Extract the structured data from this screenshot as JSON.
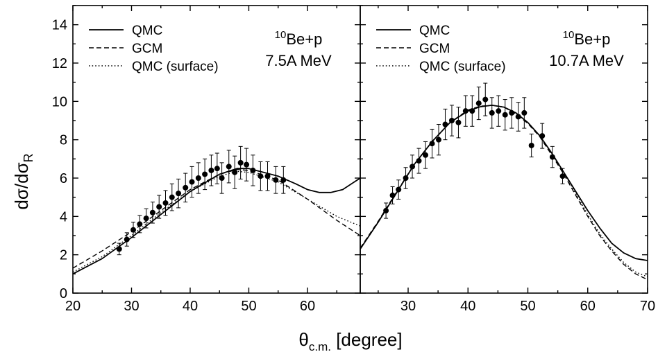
{
  "ylabel": {
    "main": "dσ/dσ",
    "sub": "R"
  },
  "xlabel": {
    "main": "θ",
    "sub": "c.m.",
    "rest": " [degree]"
  },
  "legend_labels": [
    "QMC",
    "GCM",
    "QMC (surface)"
  ],
  "chart_data": [
    {
      "type": "line",
      "panel": "left",
      "reaction": {
        "sup": "10",
        "text": "Be+p"
      },
      "energy": "7.5A MeV",
      "xlim": [
        20,
        69
      ],
      "ylim": [
        0,
        15
      ],
      "xticks": [
        20,
        30,
        40,
        50,
        60
      ],
      "yticks": [
        0,
        2,
        4,
        6,
        8,
        10,
        12,
        14
      ],
      "legend_position": "top-left",
      "series": [
        {
          "name": "QMC",
          "style": "solid",
          "x": [
            20,
            25,
            30,
            35,
            40,
            45,
            48,
            50,
            55,
            58,
            60,
            62,
            64,
            66,
            68,
            69
          ],
          "y": [
            1.0,
            1.8,
            2.9,
            4.1,
            5.3,
            6.2,
            6.5,
            6.5,
            6.1,
            5.7,
            5.4,
            5.25,
            5.25,
            5.4,
            5.8,
            6.0
          ]
        },
        {
          "name": "GCM",
          "style": "dashed",
          "x": [
            20,
            25,
            30,
            35,
            40,
            45,
            48,
            50,
            55,
            60,
            65,
            69
          ],
          "y": [
            1.3,
            2.2,
            3.2,
            4.3,
            5.4,
            6.2,
            6.45,
            6.4,
            5.9,
            4.9,
            3.8,
            3.0
          ]
        },
        {
          "name": "QMC (surface)",
          "style": "dotted",
          "x": [
            20,
            25,
            30,
            35,
            40,
            45,
            48,
            50,
            55,
            60,
            65,
            69
          ],
          "y": [
            1.1,
            1.9,
            3.0,
            4.2,
            5.3,
            6.1,
            6.35,
            6.3,
            5.8,
            4.9,
            4.0,
            3.5
          ]
        }
      ],
      "data_points": [
        {
          "x": 27.9,
          "y": 2.3,
          "err": 0.3
        },
        {
          "x": 29.2,
          "y": 2.8,
          "err": 0.35
        },
        {
          "x": 30.3,
          "y": 3.3,
          "err": 0.4
        },
        {
          "x": 31.4,
          "y": 3.6,
          "err": 0.45
        },
        {
          "x": 32.5,
          "y": 3.9,
          "err": 0.5
        },
        {
          "x": 33.6,
          "y": 4.2,
          "err": 0.55
        },
        {
          "x": 34.7,
          "y": 4.5,
          "err": 0.6
        },
        {
          "x": 35.8,
          "y": 4.7,
          "err": 0.65
        },
        {
          "x": 36.9,
          "y": 5.0,
          "err": 0.7
        },
        {
          "x": 38.0,
          "y": 5.2,
          "err": 0.75
        },
        {
          "x": 39.2,
          "y": 5.5,
          "err": 0.75
        },
        {
          "x": 40.3,
          "y": 5.8,
          "err": 0.8
        },
        {
          "x": 41.4,
          "y": 6.0,
          "err": 0.8
        },
        {
          "x": 42.5,
          "y": 6.2,
          "err": 0.8
        },
        {
          "x": 43.6,
          "y": 6.4,
          "err": 0.8
        },
        {
          "x": 44.6,
          "y": 6.5,
          "err": 0.8
        },
        {
          "x": 45.4,
          "y": 6.0,
          "err": 0.8
        },
        {
          "x": 46.6,
          "y": 6.6,
          "err": 0.85
        },
        {
          "x": 47.6,
          "y": 6.3,
          "err": 0.85
        },
        {
          "x": 48.6,
          "y": 6.8,
          "err": 0.85
        },
        {
          "x": 49.6,
          "y": 6.7,
          "err": 0.85
        },
        {
          "x": 50.7,
          "y": 6.4,
          "err": 0.8
        },
        {
          "x": 52.0,
          "y": 6.1,
          "err": 0.75
        },
        {
          "x": 53.2,
          "y": 6.1,
          "err": 0.75
        },
        {
          "x": 54.6,
          "y": 5.9,
          "err": 0.7
        },
        {
          "x": 55.9,
          "y": 5.9,
          "err": 0.7
        }
      ]
    },
    {
      "type": "line",
      "panel": "right",
      "reaction": {
        "sup": "10",
        "text": "Be+p"
      },
      "energy": "10.7A MeV",
      "xlim": [
        22,
        70
      ],
      "ylim": [
        0,
        15
      ],
      "xticks": [
        30,
        40,
        50,
        60,
        70
      ],
      "yticks": [
        0,
        2,
        4,
        6,
        8,
        10,
        12,
        14
      ],
      "legend_position": "top-left",
      "series": [
        {
          "name": "QMC",
          "style": "solid",
          "x": [
            22,
            25,
            28,
            31,
            34,
            37,
            40,
            42,
            44,
            46,
            48,
            50,
            52,
            54,
            56,
            58,
            60,
            62,
            64,
            66,
            68,
            70
          ],
          "y": [
            2.3,
            3.7,
            5.2,
            6.7,
            7.9,
            8.9,
            9.5,
            9.72,
            9.8,
            9.7,
            9.4,
            8.9,
            8.2,
            7.3,
            6.3,
            5.3,
            4.3,
            3.4,
            2.6,
            2.1,
            1.8,
            1.7
          ]
        },
        {
          "name": "GCM",
          "style": "dashed",
          "x": [
            22,
            25,
            28,
            31,
            34,
            37,
            40,
            42,
            44,
            46,
            48,
            50,
            52,
            54,
            56,
            58,
            60,
            62,
            64,
            66,
            68,
            70
          ],
          "y": [
            2.35,
            3.75,
            5.25,
            6.7,
            7.9,
            8.9,
            9.55,
            9.75,
            9.8,
            9.7,
            9.35,
            8.85,
            8.15,
            7.2,
            6.2,
            5.1,
            4.0,
            3.0,
            2.2,
            1.5,
            1.0,
            0.7
          ]
        },
        {
          "name": "QMC (surface)",
          "style": "dotted",
          "x": [
            22,
            25,
            28,
            31,
            34,
            37,
            40,
            42,
            44,
            46,
            48,
            50,
            52,
            54,
            56,
            58,
            60,
            62,
            64,
            66,
            68,
            70
          ],
          "y": [
            2.3,
            3.7,
            5.2,
            6.7,
            7.9,
            8.9,
            9.5,
            9.72,
            9.8,
            9.7,
            9.4,
            8.9,
            8.2,
            7.3,
            6.3,
            5.2,
            4.1,
            3.1,
            2.3,
            1.6,
            1.1,
            0.85
          ]
        }
      ],
      "data_points": [
        {
          "x": 26.3,
          "y": 4.3,
          "err": 0.4
        },
        {
          "x": 27.4,
          "y": 5.1,
          "err": 0.45
        },
        {
          "x": 28.4,
          "y": 5.4,
          "err": 0.5
        },
        {
          "x": 29.6,
          "y": 6.0,
          "err": 0.55
        },
        {
          "x": 30.7,
          "y": 6.6,
          "err": 0.6
        },
        {
          "x": 31.8,
          "y": 6.9,
          "err": 0.65
        },
        {
          "x": 32.9,
          "y": 7.2,
          "err": 0.7
        },
        {
          "x": 34.0,
          "y": 7.8,
          "err": 0.75
        },
        {
          "x": 35.1,
          "y": 8.0,
          "err": 0.8
        },
        {
          "x": 36.2,
          "y": 8.8,
          "err": 0.8
        },
        {
          "x": 37.3,
          "y": 9.0,
          "err": 0.8
        },
        {
          "x": 38.4,
          "y": 8.9,
          "err": 0.8
        },
        {
          "x": 39.6,
          "y": 9.5,
          "err": 0.8
        },
        {
          "x": 40.7,
          "y": 9.5,
          "err": 0.8
        },
        {
          "x": 41.8,
          "y": 9.9,
          "err": 0.85
        },
        {
          "x": 42.9,
          "y": 10.1,
          "err": 0.85
        },
        {
          "x": 44.0,
          "y": 9.4,
          "err": 0.8
        },
        {
          "x": 45.1,
          "y": 9.5,
          "err": 0.8
        },
        {
          "x": 46.2,
          "y": 9.3,
          "err": 0.8
        },
        {
          "x": 47.3,
          "y": 9.4,
          "err": 0.8
        },
        {
          "x": 48.4,
          "y": 9.2,
          "err": 0.75
        },
        {
          "x": 49.4,
          "y": 9.4,
          "err": 0.8
        },
        {
          "x": 50.6,
          "y": 7.7,
          "err": 0.6
        },
        {
          "x": 52.4,
          "y": 8.2,
          "err": 0.65
        },
        {
          "x": 54.1,
          "y": 7.1,
          "err": 0.55
        },
        {
          "x": 55.8,
          "y": 6.1,
          "err": 0.4
        }
      ]
    }
  ]
}
